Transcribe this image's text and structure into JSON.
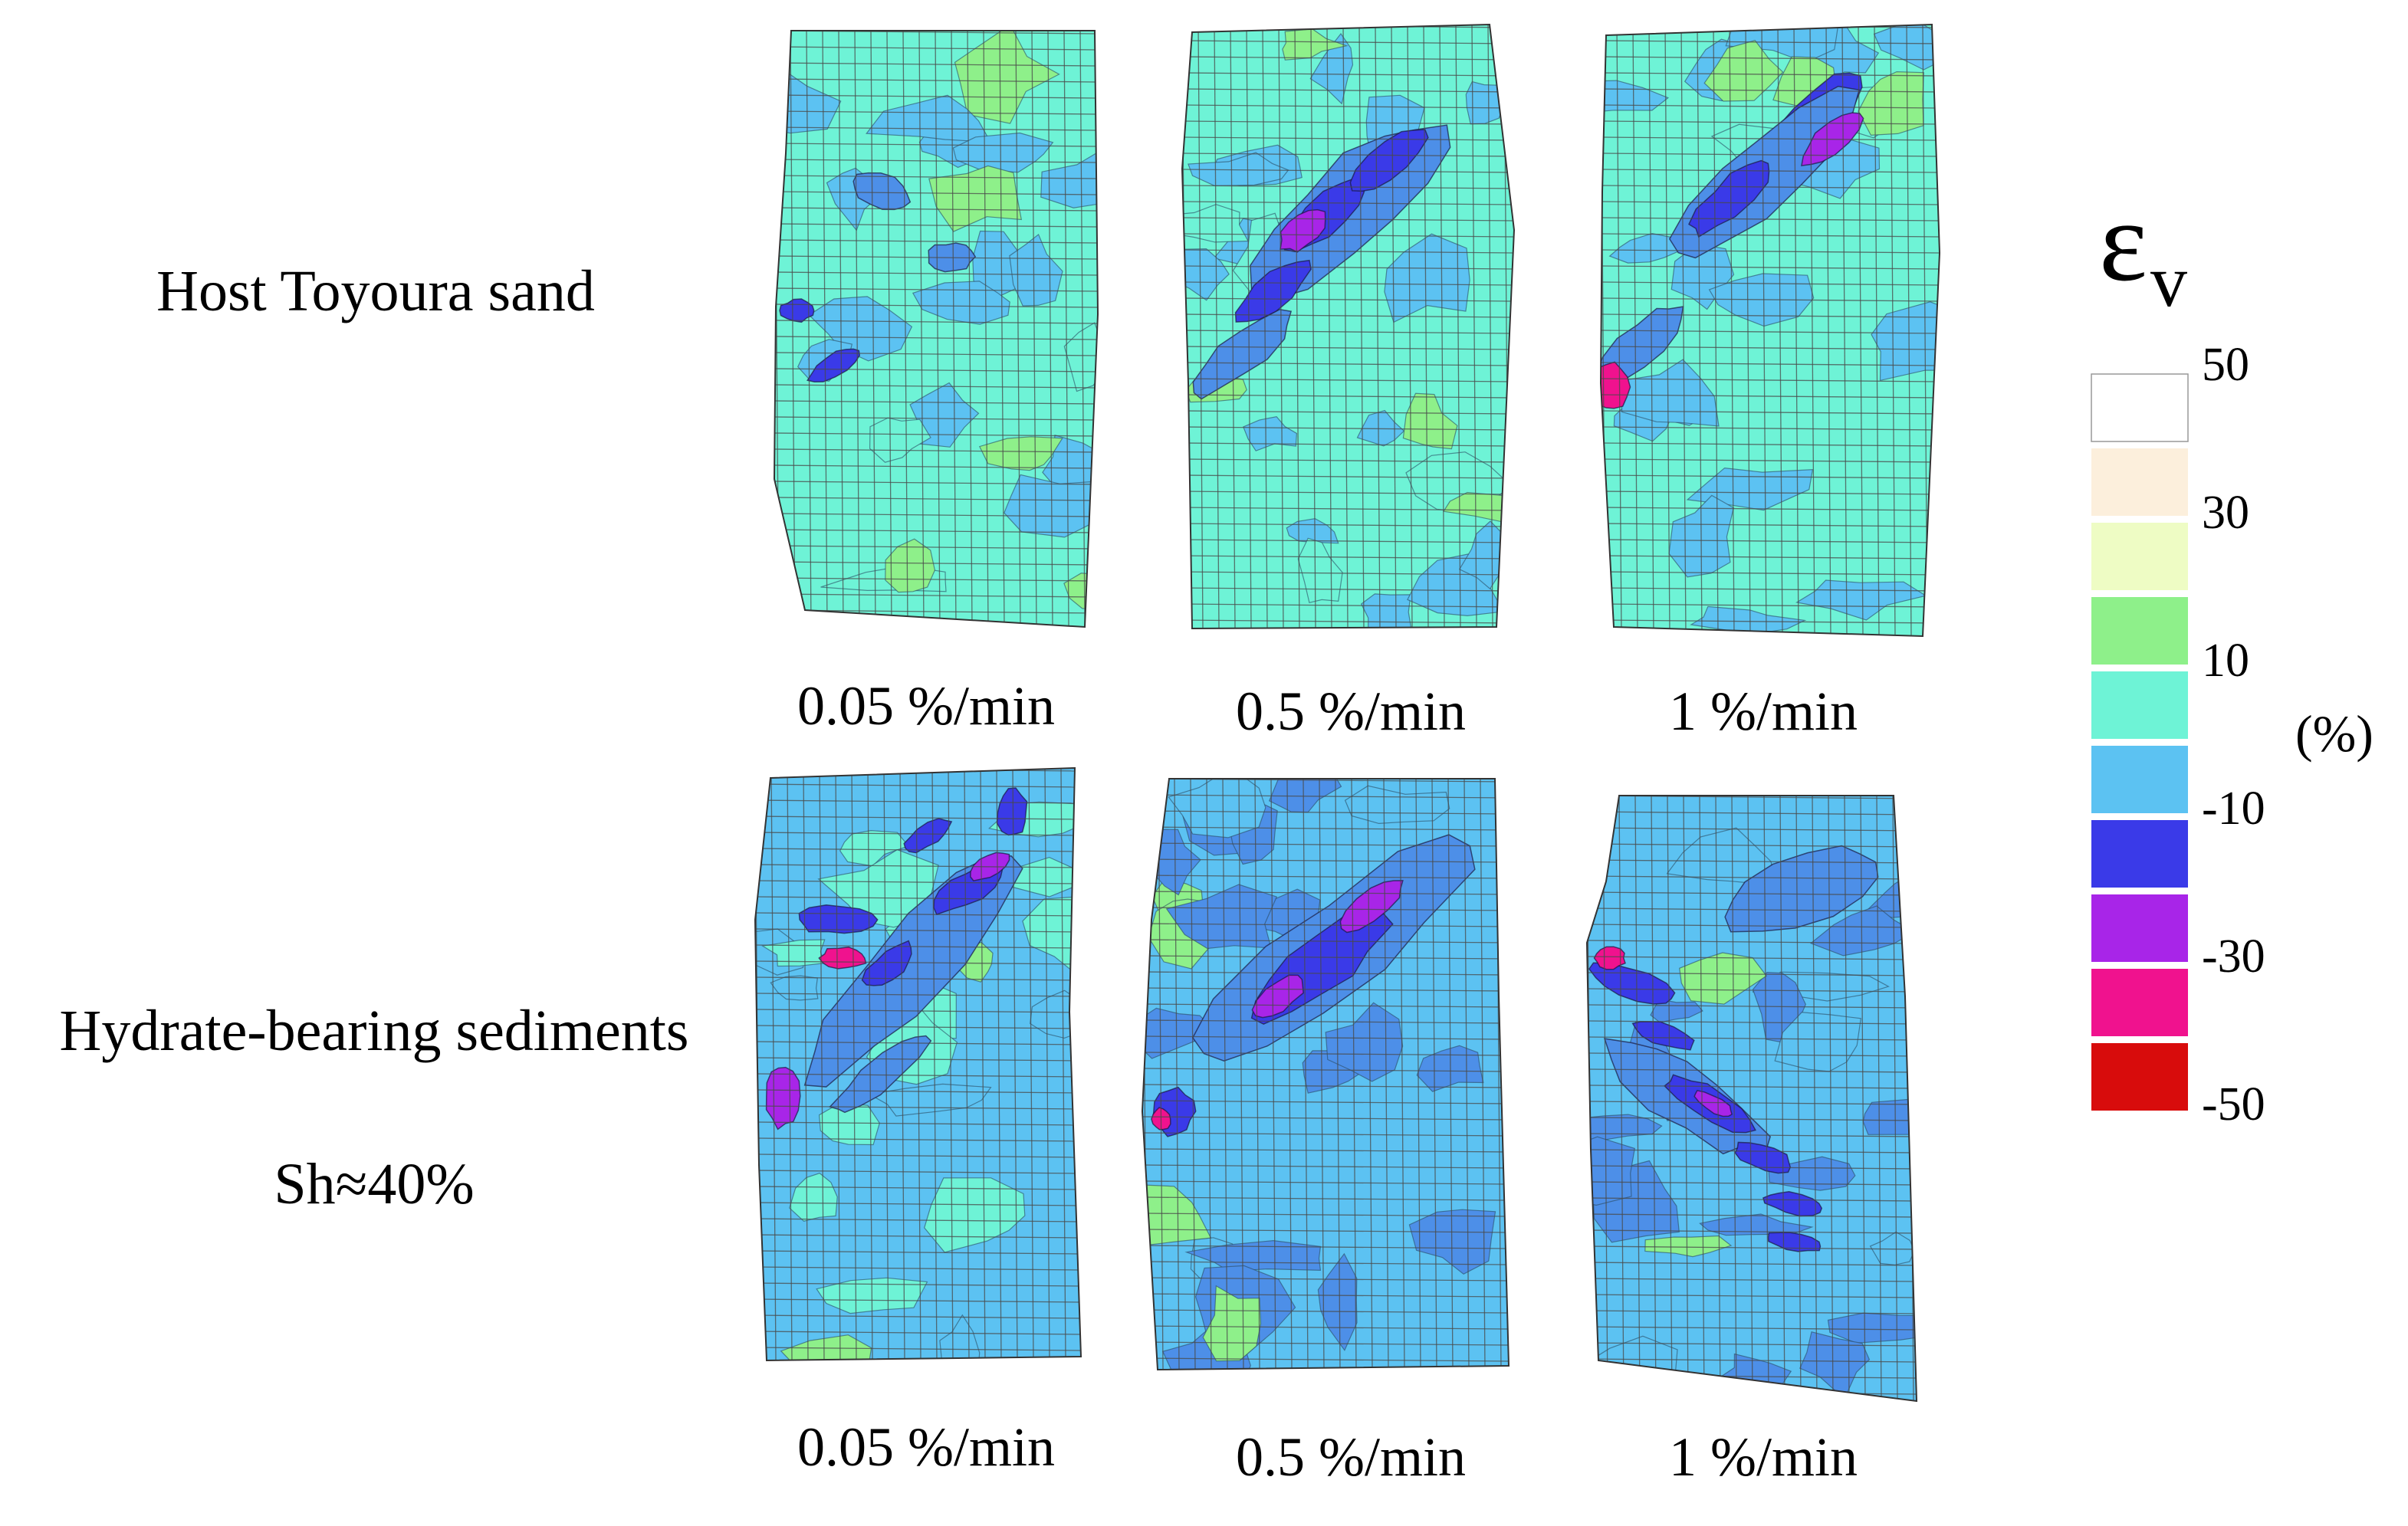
{
  "rows": [
    {
      "label": "Host Toyoura sand",
      "sublabel": ""
    },
    {
      "label": "Hydrate-bearing sediments",
      "sublabel": "Sh≈40%"
    }
  ],
  "rates": [
    "0.05 %/min",
    "0.5 %/min",
    "1 %/min"
  ],
  "legend": {
    "symbol": "ε",
    "subscript": "v",
    "unit": "(%)",
    "ticks": [
      "50",
      "30",
      "10",
      "-10",
      "-30",
      "-50"
    ],
    "colors": [
      "#ffffff",
      "#fcefdc",
      "#eefcc4",
      "#8ef08a",
      "#6ef3d6",
      "#5cc2f2",
      "#3a3ae8",
      "#a825e8",
      "#f0128e",
      "#d80c0c"
    ]
  },
  "palette": {
    "base_teal": "#6ef3d6",
    "base_sky": "#5cc2f2",
    "medium_blue": "#4d8fe8",
    "dark_blue": "#3a3ae8",
    "violet": "#a825e8",
    "magenta": "#f0128e",
    "green": "#8ef08a",
    "mesh": "#4a4a4a"
  }
}
